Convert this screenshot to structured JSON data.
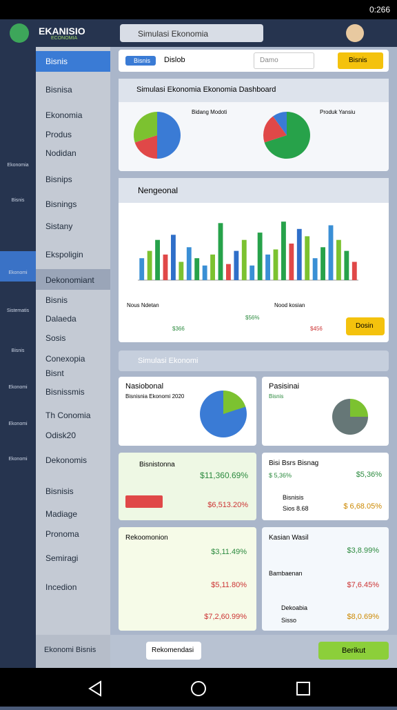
{
  "status_bar": {
    "time": "0:266"
  },
  "header": {
    "brand": "EKANISIO",
    "brand_sub": "ECONOMIA",
    "search": "Simulasi Ekonomia"
  },
  "rail": {
    "items": [
      "Ekonomia",
      "Bisnis",
      "Ekonomi",
      "Sistematis",
      "Bisnis",
      "Ekonomi",
      "Ekonomi",
      "Ekonomi"
    ]
  },
  "sidebar": {
    "items": [
      "Bisnis",
      "Bisnisa",
      "Ekonomia",
      "Produs",
      "Nodidan",
      "Bisnips",
      "Bisnings",
      "Sistany",
      "Ekspoligin",
      "Dekonomiant",
      "Bisnis",
      "Dalaeda",
      "Sosis",
      "Conexopia",
      "Bisnt",
      "Bisnissmis",
      "Th Conomia",
      "Odisk20",
      "Dekonomis",
      "Bisnisis",
      "Madiage",
      "Pronoma",
      "Semiragi",
      "Incedion"
    ],
    "footer": "Ekonomi Bisnis"
  },
  "filter": {
    "chip": "Bisnis",
    "label": "Dislob",
    "input": "Damo",
    "button": "Bisnis"
  },
  "card1": {
    "title": "Simulasi Ekonomia Ekonomia Dashboard",
    "left_label": "Bidang Modoti",
    "right_label": "Produk Yansiu",
    "pies": [
      {
        "values": [
          50,
          20,
          30
        ],
        "colors": [
          "#3a7bd5",
          "#e04848",
          "#7cc230"
        ]
      },
      {
        "values": [
          70,
          20,
          10
        ],
        "colors": [
          "#27a24a",
          "#e04848",
          "#3a7bd5"
        ]
      }
    ]
  },
  "card2": {
    "title": "Nengeonal",
    "bars": {
      "values": [
        30,
        40,
        55,
        35,
        62,
        25,
        45,
        30,
        20,
        35,
        78,
        22,
        40,
        55,
        20,
        65,
        35,
        42,
        80,
        50,
        70,
        60,
        30,
        45,
        75,
        55,
        40,
        25
      ],
      "colors": [
        "#3a8fd5",
        "#7cc230",
        "#27a24a",
        "#e04848",
        "#2f6fc9",
        "#7cc230",
        "#3a8fd5",
        "#27a24a"
      ],
      "ylim": [
        0,
        100
      ]
    },
    "mini_left": "Nous Ndetan",
    "mini_left_value": "$366",
    "mini_mid_value": "$56%",
    "mini_right": "Nood kosian",
    "mini_right_value": "$456",
    "button": "Dosin"
  },
  "card3": {
    "title": "Simulasi Ekonomi",
    "left_title": "Nasiobonal",
    "left_sub": "Bisnisnia Ekonomi 2020",
    "right_title": "Pasisinai",
    "right_sub": "Bisnis"
  },
  "row1": {
    "left_title": "Bisnistonna",
    "left_value": "$11,360.69%",
    "left_value2": "$6,513.20%",
    "right_title": "Bisi Bsrs Bisnag",
    "right_sub": "$ 5,36%",
    "right_value": "$5,36%",
    "right_title2": "Bisnisis",
    "right_sub2": "Sios 8.68",
    "right_value2": "$ 6,68.05%"
  },
  "row2": {
    "left_title": "Rekoomonion",
    "left_values": [
      "$3,11.49%",
      "$5,11.80%",
      "$7,2,60.99%"
    ],
    "right_title": "Kasian Wasil",
    "right_value": "$3,8.99%",
    "right_title2": "Bambaenan",
    "right_value2": "$7,6.45%",
    "right_title3": "Dekoabia",
    "right_sub3": "Sisso",
    "right_value3": "$8,0.69%"
  },
  "footer": {
    "button": "Rekomendasi",
    "primary": "Berikut"
  }
}
